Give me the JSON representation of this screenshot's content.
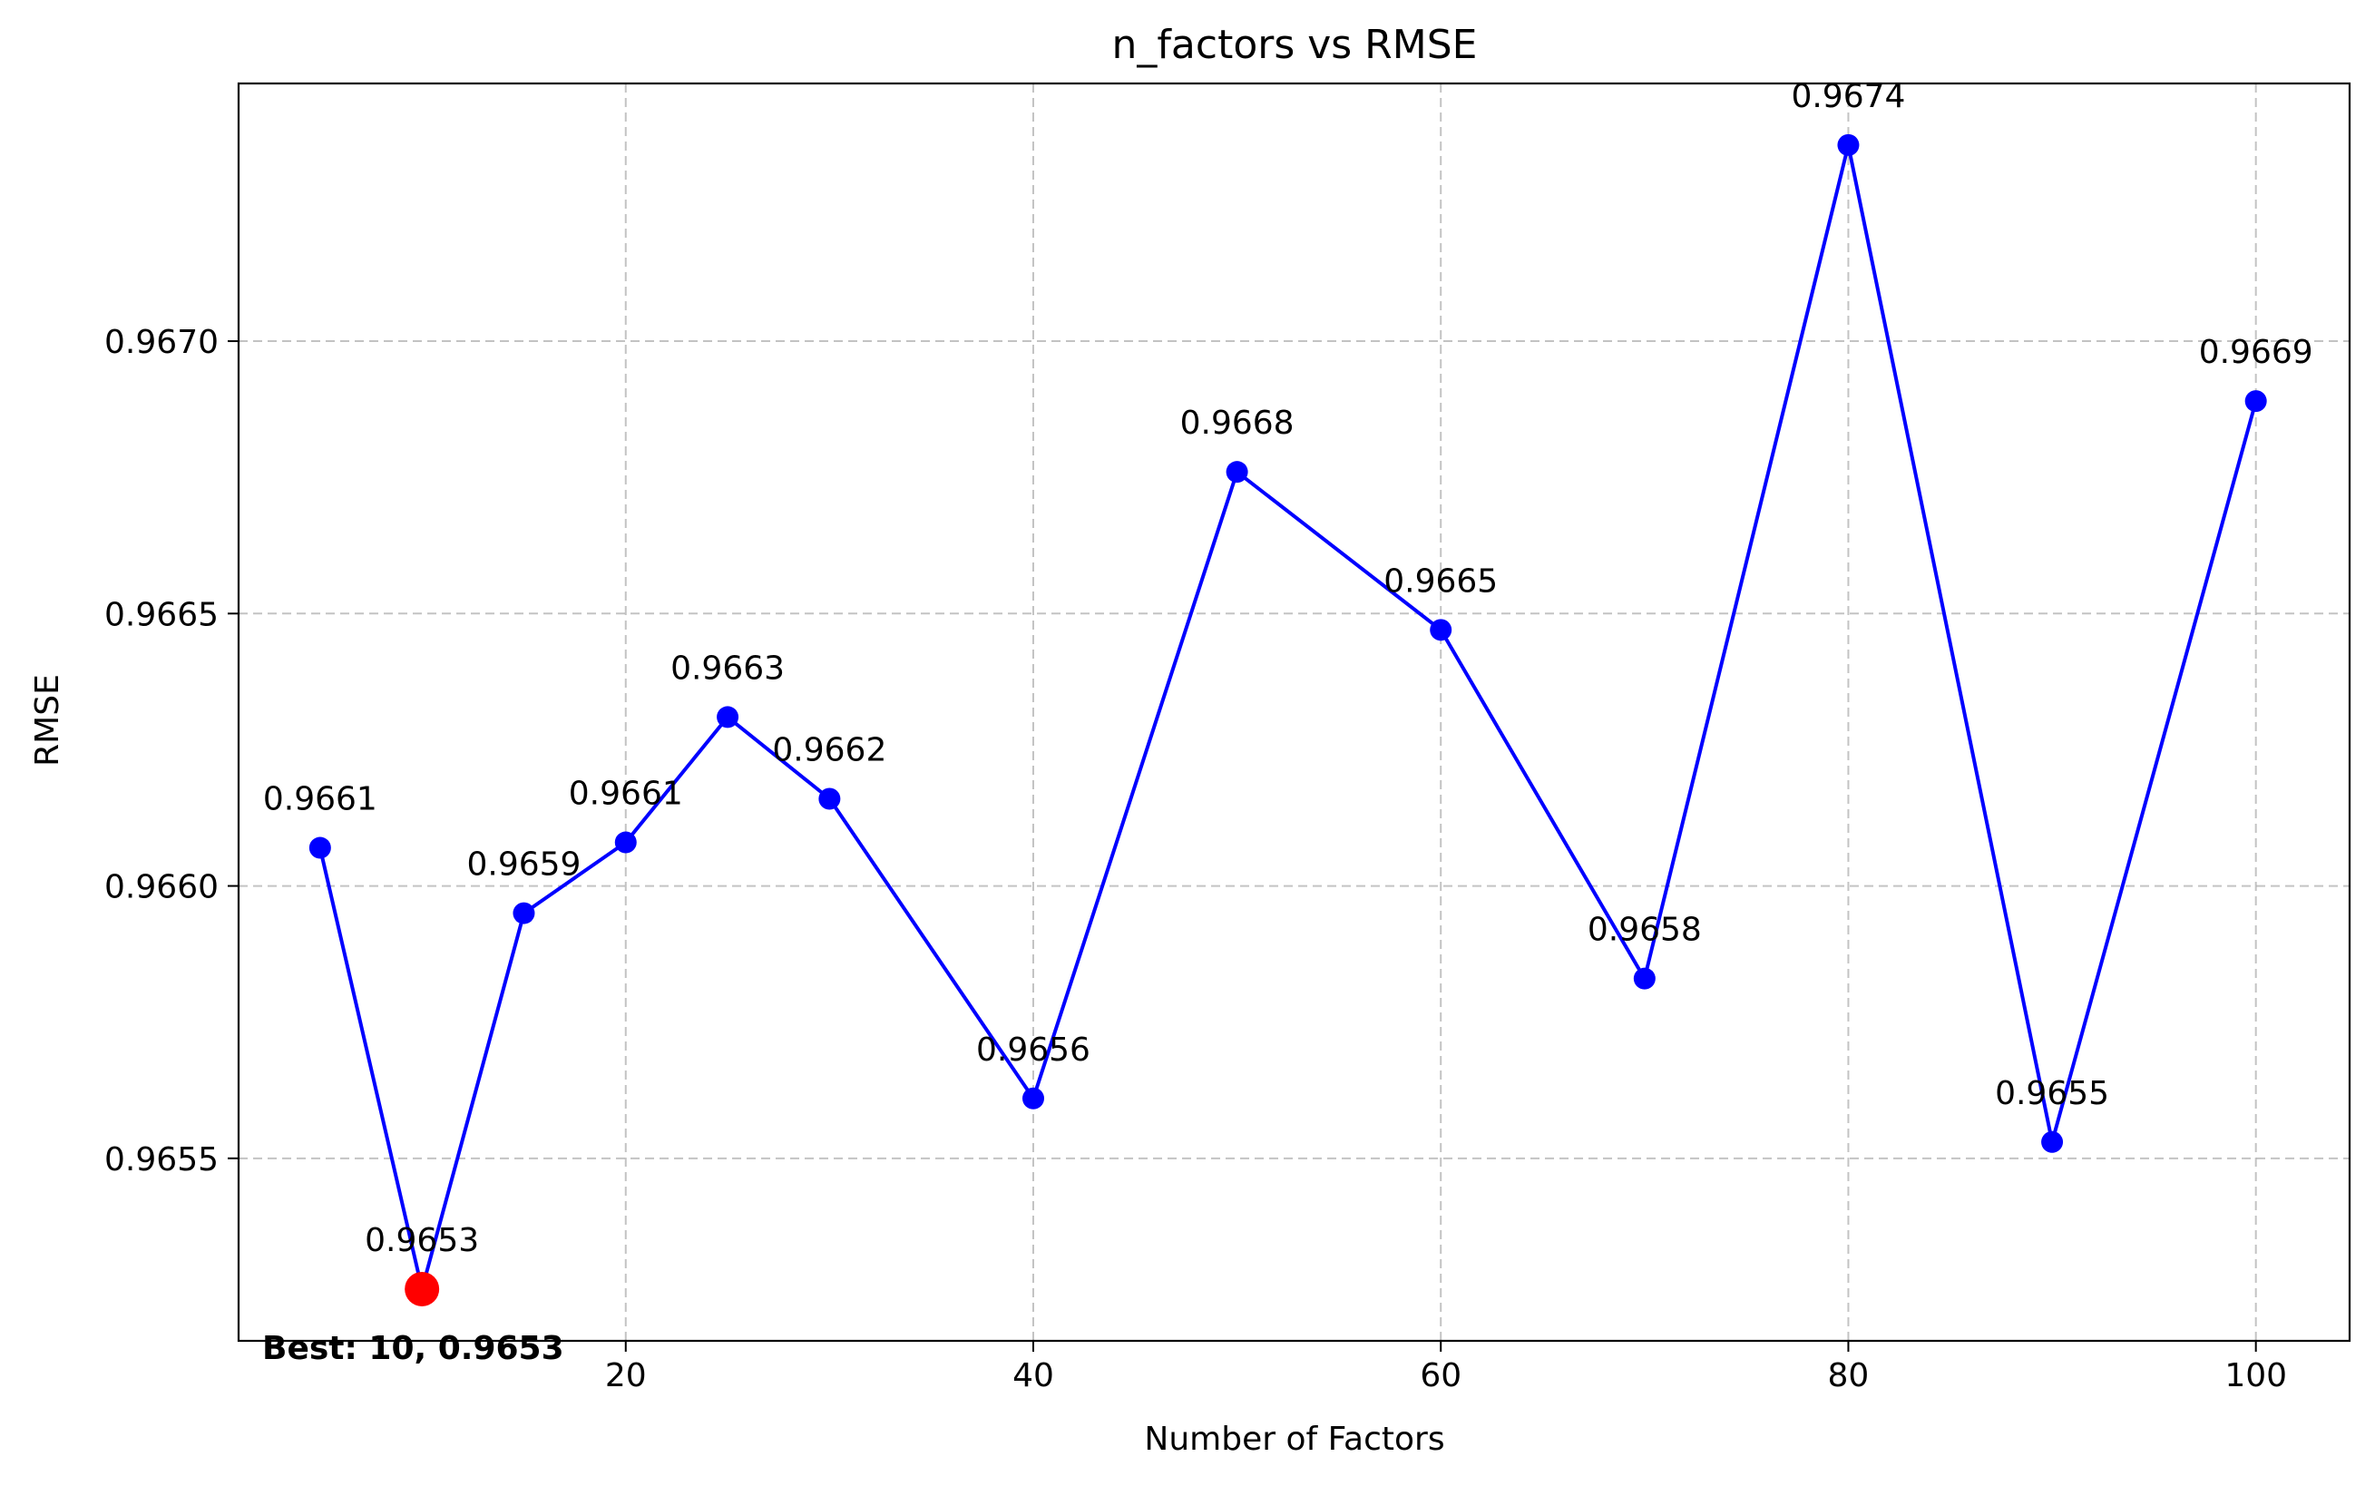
{
  "chart_data": {
    "type": "line",
    "title": "n_factors vs RMSE",
    "xlabel": "Number of Factors",
    "ylabel": "RMSE",
    "x": [
      5,
      10,
      15,
      20,
      25,
      30,
      40,
      50,
      60,
      70,
      80,
      90,
      100
    ],
    "y": [
      0.96607,
      0.96526,
      0.96595,
      0.96608,
      0.96631,
      0.96616,
      0.96561,
      0.96676,
      0.96647,
      0.96583,
      0.96736,
      0.96553,
      0.96689
    ],
    "data_labels": [
      "0.9661",
      "0.9653",
      "0.9659",
      "0.9661",
      "0.9663",
      "0.9662",
      "0.9656",
      "0.9668",
      "0.9665",
      "0.9658",
      "0.9674",
      "0.9655",
      "0.9669"
    ],
    "xlim": [
      1,
      104.6
    ],
    "ylim": [
      0.965165,
      0.967473
    ],
    "xticks": [
      20,
      40,
      60,
      80,
      100
    ],
    "xtick_labels": [
      "20",
      "40",
      "60",
      "80",
      "100"
    ],
    "yticks": [
      0.9655,
      0.966,
      0.9665,
      0.967
    ],
    "ytick_labels": [
      "0.9655",
      "0.9660",
      "0.9665",
      "0.9670"
    ],
    "grid": true,
    "line_color": "#0000ff",
    "best": {
      "x": 10,
      "y": 0.96526,
      "color": "#ff0000",
      "label": "Best: 10, 0.9653"
    }
  }
}
